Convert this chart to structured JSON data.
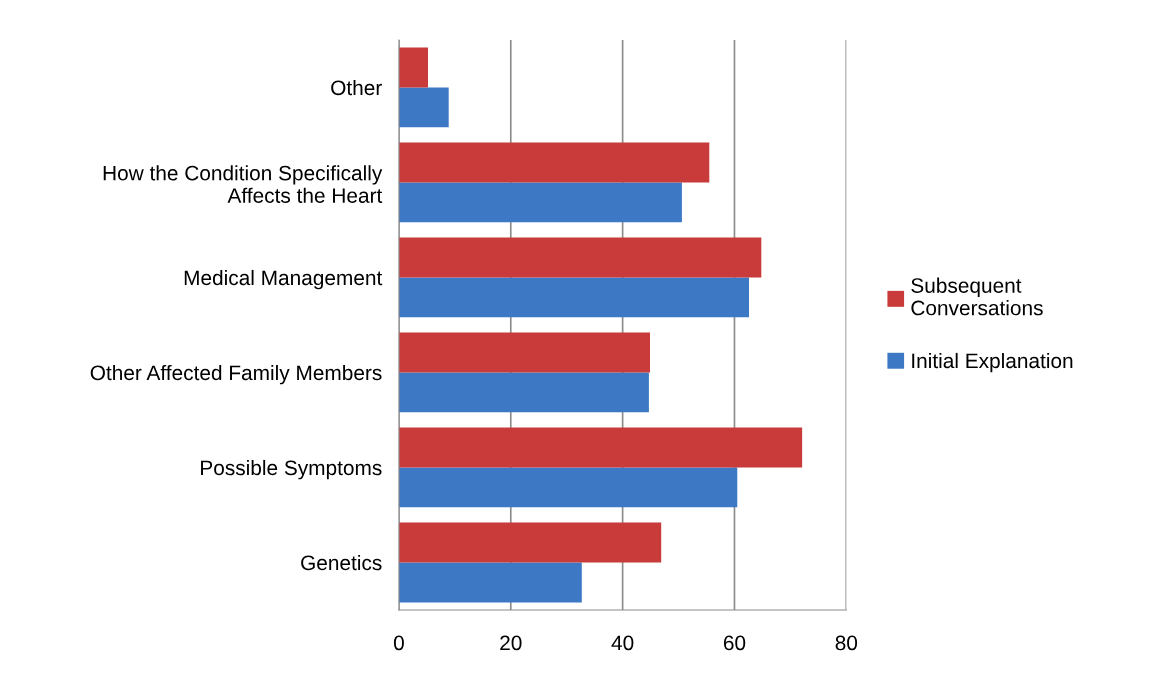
{
  "chart_data": {
    "type": "bar",
    "orientation": "horizontal",
    "categories": [
      "Other",
      "How the Condition Specifically\nAffects the Heart",
      "Medical Management",
      "Other Affected Family Members",
      "Possible Symptoms",
      "Genetics"
    ],
    "series": [
      {
        "name": "Initial Explanation",
        "color": "#3d78c4",
        "values": [
          8.9,
          50.6,
          62.6,
          44.7,
          60.5,
          32.7
        ]
      },
      {
        "name": "Subsequent\nConversations",
        "color": "#c83b3a",
        "values": [
          5.2,
          55.5,
          64.8,
          44.9,
          72.1,
          46.9
        ]
      }
    ],
    "xlim": [
      0,
      80
    ],
    "xticks": [
      0,
      20,
      40,
      60,
      80
    ],
    "grid": "x",
    "legend": "right"
  }
}
